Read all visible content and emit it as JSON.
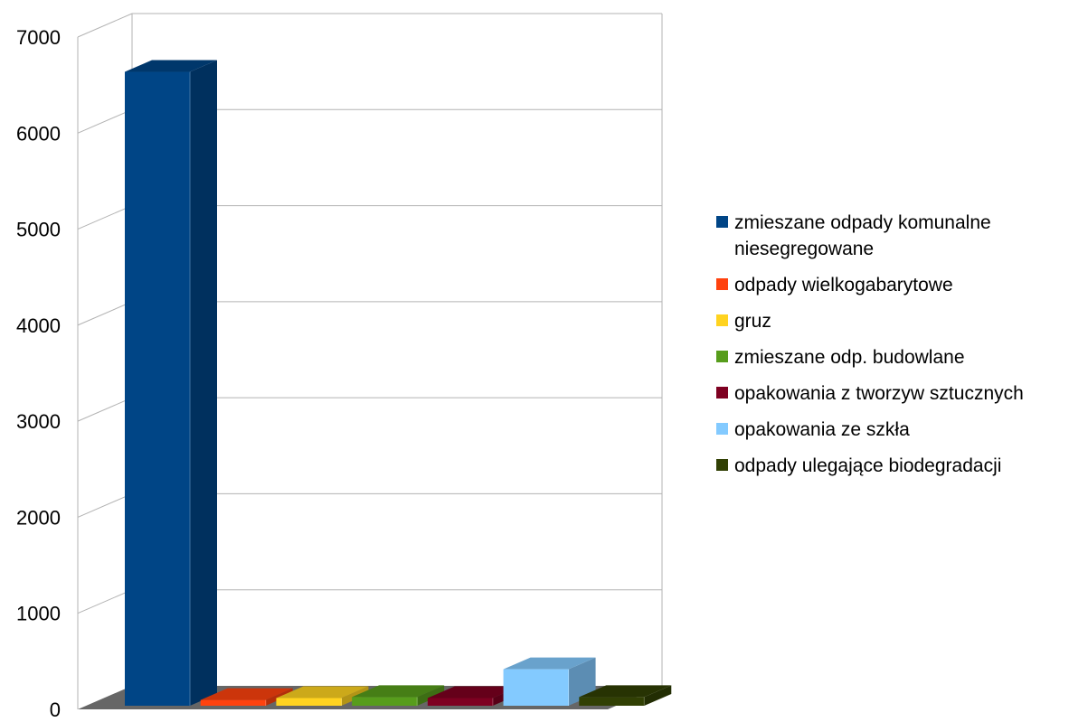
{
  "chart_data": {
    "type": "bar",
    "style": "3d",
    "categories": [
      "zmieszane odpady komunalne niesegregowane",
      "odpady wielkogabarytowe",
      "gruz",
      "zmieszane odp. budowlane",
      "opakowania z tworzyw sztucznych",
      "opakowania ze szkła",
      "odpady ulegające biodegradacji"
    ],
    "values": [
      6600,
      60,
      80,
      90,
      80,
      380,
      90
    ],
    "colors": [
      "#004586",
      "#ff420e",
      "#ffd320",
      "#579d1c",
      "#7e0021",
      "#83caff",
      "#314004"
    ],
    "ylim": [
      0,
      7000
    ],
    "yticks": [
      "0",
      "1000",
      "2000",
      "3000",
      "4000",
      "5000",
      "6000",
      "7000"
    ],
    "grid": true,
    "legend_position": "right",
    "xlabel": "",
    "ylabel": ""
  }
}
